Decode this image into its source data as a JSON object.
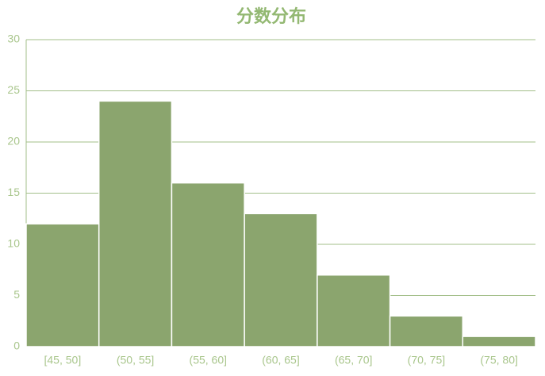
{
  "chart_data": {
    "type": "bar",
    "title": "分数分布",
    "categories": [
      "[45, 50]",
      "(50, 55]",
      "(55, 60]",
      "(60, 65]",
      "(65, 70]",
      "(70, 75]",
      "(75, 80]"
    ],
    "values": [
      12,
      24,
      16,
      13,
      7,
      3,
      1
    ],
    "color": "#8ba56e",
    "ylim": [
      0,
      30
    ],
    "yticks": [
      0,
      5,
      10,
      15,
      20,
      25,
      30
    ],
    "grid": true
  }
}
